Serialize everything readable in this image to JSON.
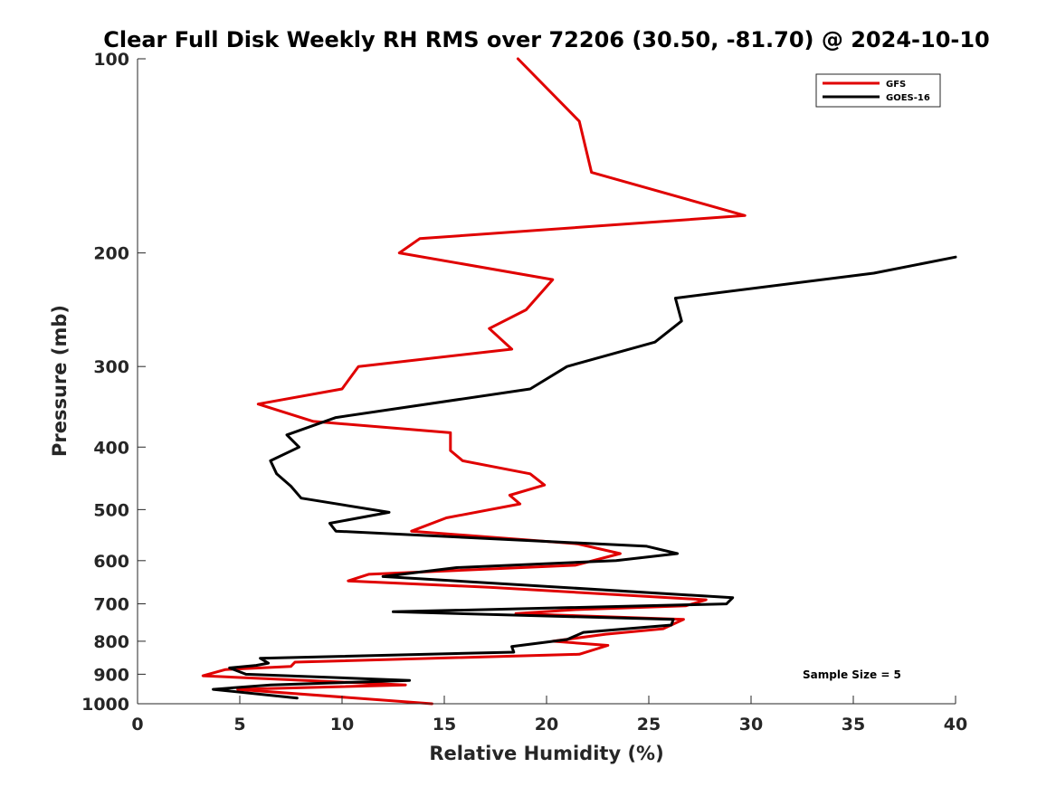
{
  "chart_data": {
    "type": "line",
    "title": "Clear Full Disk Weekly RH RMS over 72206 (30.50, -81.70) @ 2024-10-10",
    "xlabel": "Relative Humidity (%)",
    "ylabel": "Pressure (mb)",
    "xlim": [
      0,
      40
    ],
    "ylim": [
      100,
      1000
    ],
    "yscale": "log",
    "yreversed": true,
    "xticks": [
      0,
      5,
      10,
      15,
      20,
      25,
      30,
      35,
      40
    ],
    "yticks": [
      100,
      200,
      300,
      400,
      500,
      600,
      700,
      800,
      900,
      1000
    ],
    "grid": false,
    "legend_position": "top-right",
    "annotation": "Sample Size = 5",
    "series": [
      {
        "name": "GFS",
        "color": "#e00000",
        "points": [
          [
            18.6,
            100
          ],
          [
            21.6,
            125
          ],
          [
            22.2,
            150
          ],
          [
            29.7,
            175
          ],
          [
            13.8,
            190
          ],
          [
            12.8,
            200
          ],
          [
            20.3,
            220
          ],
          [
            19.0,
            245
          ],
          [
            17.2,
            262
          ],
          [
            18.3,
            282
          ],
          [
            10.8,
            300
          ],
          [
            10.0,
            325
          ],
          [
            5.9,
            343
          ],
          [
            8.6,
            365
          ],
          [
            15.3,
            380
          ],
          [
            15.3,
            405
          ],
          [
            15.9,
            420
          ],
          [
            19.2,
            440
          ],
          [
            19.9,
            458
          ],
          [
            18.2,
            475
          ],
          [
            18.7,
            490
          ],
          [
            15.1,
            515
          ],
          [
            13.4,
            540
          ],
          [
            21.5,
            565
          ],
          [
            23.6,
            585
          ],
          [
            21.4,
            610
          ],
          [
            11.3,
            630
          ],
          [
            10.3,
            645
          ],
          [
            17.2,
            660
          ],
          [
            27.8,
            690
          ],
          [
            26.8,
            705
          ],
          [
            21.3,
            715
          ],
          [
            18.5,
            725
          ],
          [
            26.7,
            740
          ],
          [
            25.7,
            765
          ],
          [
            22.9,
            780
          ],
          [
            20.3,
            800
          ],
          [
            23.0,
            812
          ],
          [
            21.6,
            838
          ],
          [
            7.7,
            862
          ],
          [
            7.5,
            875
          ],
          [
            4.3,
            885
          ],
          [
            3.2,
            905
          ],
          [
            13.1,
            935
          ],
          [
            4.9,
            950
          ],
          [
            14.4,
            1000
          ]
        ]
      },
      {
        "name": "GOES-16",
        "color": "#000000",
        "points": [
          [
            40.0,
            203
          ],
          [
            36.0,
            215
          ],
          [
            26.3,
            235
          ],
          [
            26.6,
            255
          ],
          [
            25.3,
            275
          ],
          [
            21.0,
            300
          ],
          [
            19.2,
            325
          ],
          [
            9.7,
            360
          ],
          [
            7.3,
            383
          ],
          [
            7.9,
            400
          ],
          [
            6.5,
            420
          ],
          [
            6.8,
            440
          ],
          [
            7.5,
            460
          ],
          [
            8.0,
            480
          ],
          [
            12.3,
            505
          ],
          [
            9.4,
            525
          ],
          [
            9.7,
            540
          ],
          [
            24.9,
            570
          ],
          [
            26.4,
            585
          ],
          [
            23.4,
            600
          ],
          [
            15.6,
            615
          ],
          [
            12.0,
            635
          ],
          [
            17.3,
            650
          ],
          [
            29.1,
            685
          ],
          [
            28.8,
            700
          ],
          [
            12.5,
            720
          ],
          [
            26.2,
            740
          ],
          [
            26.1,
            755
          ],
          [
            21.8,
            775
          ],
          [
            21.0,
            795
          ],
          [
            18.3,
            815
          ],
          [
            18.4,
            832
          ],
          [
            6.0,
            850
          ],
          [
            6.4,
            865
          ],
          [
            5.8,
            872
          ],
          [
            4.5,
            880
          ],
          [
            5.3,
            900
          ],
          [
            13.3,
            920
          ],
          [
            6.5,
            935
          ],
          [
            3.7,
            950
          ],
          [
            7.8,
            980
          ]
        ]
      }
    ]
  }
}
